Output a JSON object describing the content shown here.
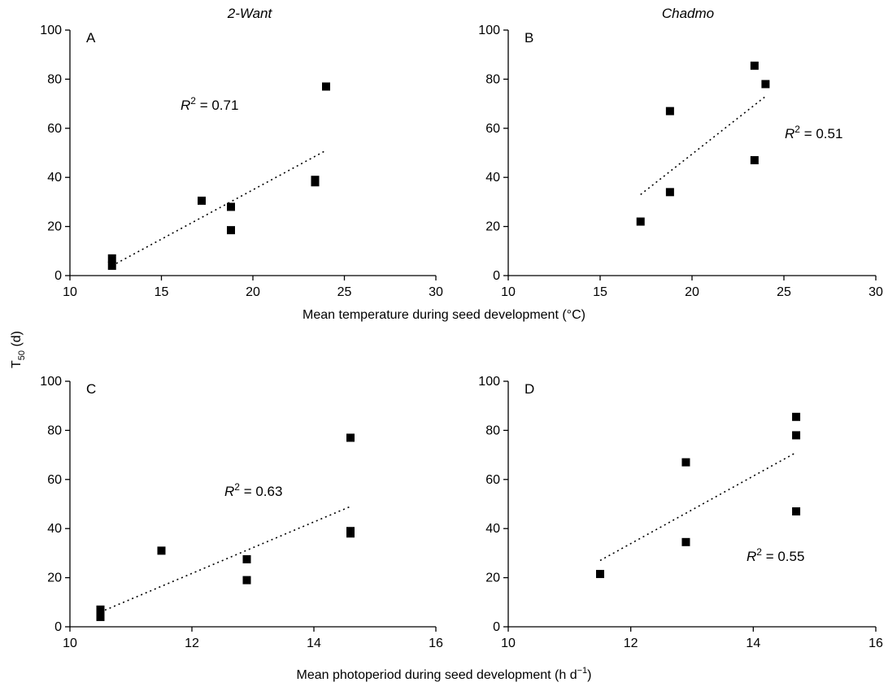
{
  "figure": {
    "shared_ylabel": {
      "main": "T",
      "sub": "50",
      "tail": " (d)"
    },
    "top_xlabel": "Mean temperature during seed development (°C)",
    "bottom_xlabel": {
      "main": "Mean photoperiod during seed development (h d",
      "sup": "−1",
      "tail": ")"
    }
  },
  "chart_data": [
    {
      "id": "A",
      "type": "scatter",
      "panel_label": "A",
      "title": "2-Want",
      "x_values": [
        12.3,
        12.3,
        17.2,
        18.8,
        18.8,
        23.4,
        23.4,
        24.0
      ],
      "y_values": [
        7,
        4,
        30.5,
        28,
        18.5,
        39,
        38,
        77
      ],
      "trendline": {
        "x": [
          12.3,
          24.0
        ],
        "y": [
          4,
          51
        ]
      },
      "annotation": {
        "prefix": "R",
        "sup": "2",
        "text": " = 0.71"
      },
      "xlim": [
        10,
        30
      ],
      "ylim": [
        0,
        100
      ],
      "xticks": [
        10,
        15,
        20,
        25,
        30
      ],
      "yticks": [
        0,
        20,
        40,
        60,
        80,
        100
      ]
    },
    {
      "id": "B",
      "type": "scatter",
      "panel_label": "B",
      "title": "Chadmo",
      "x_values": [
        17.2,
        18.8,
        18.8,
        23.4,
        23.4,
        24.0
      ],
      "y_values": [
        22,
        67,
        34,
        85.5,
        47,
        78
      ],
      "trendline": {
        "x": [
          17.2,
          24.0
        ],
        "y": [
          33,
          73
        ]
      },
      "annotation": {
        "prefix": "R",
        "sup": "2",
        "text": " = 0.51"
      },
      "xlim": [
        10,
        30
      ],
      "ylim": [
        0,
        100
      ],
      "xticks": [
        10,
        15,
        20,
        25,
        30
      ],
      "yticks": [
        0,
        20,
        40,
        60,
        80,
        100
      ]
    },
    {
      "id": "C",
      "type": "scatter",
      "panel_label": "C",
      "title": "",
      "x_values": [
        10.5,
        10.5,
        11.5,
        12.9,
        12.9,
        14.6,
        14.6,
        14.6
      ],
      "y_values": [
        7,
        4,
        31,
        27.5,
        19,
        39,
        38,
        77
      ],
      "trendline": {
        "x": [
          10.5,
          14.6
        ],
        "y": [
          6,
          49
        ]
      },
      "annotation": {
        "prefix": "R",
        "sup": "2",
        "text": " = 0.63"
      },
      "xlim": [
        10,
        16
      ],
      "ylim": [
        0,
        100
      ],
      "xticks": [
        10,
        12,
        14,
        16
      ],
      "yticks": [
        0,
        20,
        40,
        60,
        80,
        100
      ]
    },
    {
      "id": "D",
      "type": "scatter",
      "panel_label": "D",
      "title": "",
      "x_values": [
        11.5,
        12.9,
        12.9,
        14.7,
        14.7,
        14.7
      ],
      "y_values": [
        21.5,
        67,
        34.5,
        85.5,
        78,
        47
      ],
      "trendline": {
        "x": [
          11.5,
          14.7
        ],
        "y": [
          27,
          71
        ]
      },
      "annotation": {
        "prefix": "R",
        "sup": "2",
        "text": " = 0.55"
      },
      "xlim": [
        10,
        16
      ],
      "ylim": [
        0,
        100
      ],
      "xticks": [
        10,
        12,
        14,
        16
      ],
      "yticks": [
        0,
        20,
        40,
        60,
        80,
        100
      ]
    }
  ]
}
